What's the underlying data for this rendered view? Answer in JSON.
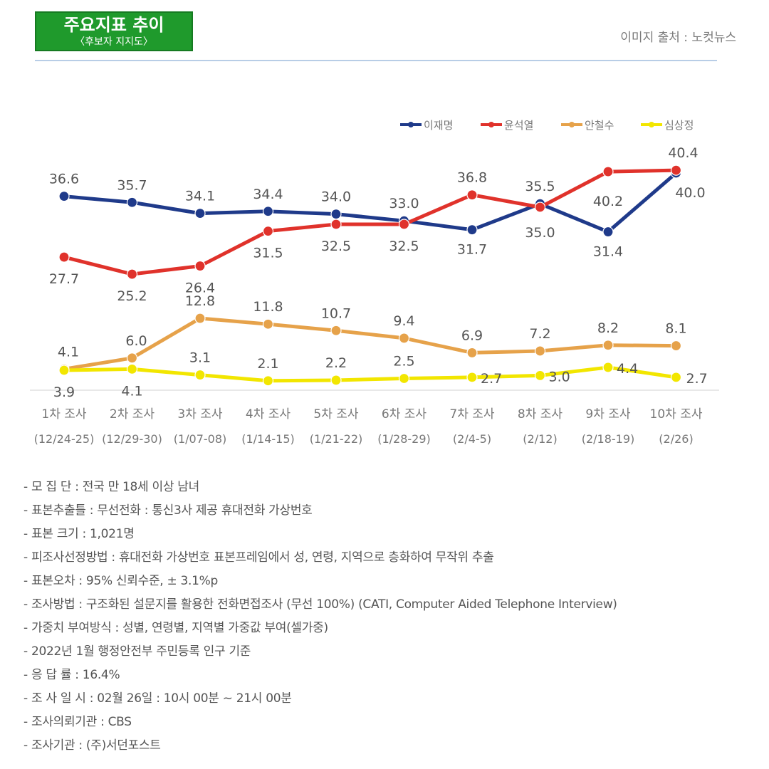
{
  "header": {
    "title": "주요지표 추이",
    "subtitle": "〈후보자 지지도〉",
    "source": "이미지 출처 : 노컷뉴스"
  },
  "chart_data": {
    "type": "line",
    "categories": [
      "1차 조사",
      "2차 조사",
      "3차 조사",
      "4차 조사",
      "5차 조사",
      "6차 조사",
      "7차 조사",
      "8차 조사",
      "9차 조사",
      "10차 조사"
    ],
    "dates": [
      "(12/24-25)",
      "(12/29-30)",
      "(1/07-08)",
      "(1/14-15)",
      "(1/21-22)",
      "(1/28-29)",
      "(2/4-5)",
      "(2/12)",
      "(2/18-19)",
      "(2/26)"
    ],
    "series": [
      {
        "name": "이재명",
        "color": "#1f3a8a",
        "values": [
          36.6,
          35.7,
          34.1,
          34.4,
          34.0,
          33.0,
          31.7,
          35.5,
          31.4,
          40.0
        ]
      },
      {
        "name": "윤석열",
        "color": "#e0322b",
        "values": [
          27.7,
          25.2,
          26.4,
          31.5,
          32.5,
          32.5,
          36.8,
          35.0,
          40.2,
          40.4
        ]
      },
      {
        "name": "안철수",
        "color": "#e6a24a",
        "values": [
          4.1,
          6.0,
          12.8,
          11.8,
          10.7,
          9.4,
          6.9,
          7.2,
          8.2,
          8.1
        ]
      },
      {
        "name": "심상정",
        "color": "#f2e600",
        "values": [
          3.9,
          4.1,
          3.1,
          2.1,
          2.2,
          2.5,
          2.7,
          3.0,
          4.4,
          2.7
        ]
      }
    ],
    "legend_position": "top-right",
    "grid": false
  },
  "notes": [
    "- 모 집 단 : 전국 만 18세 이상 남녀",
    "- 표본추출틀 : 무선전화 : 통신3사 제공 휴대전화 가상번호",
    "- 표본 크기 : 1,021명",
    "- 피조사선정방법 : 휴대전화 가상번호 표본프레임에서 성, 연령, 지역으로 층화하여 무작위 추출",
    "- 표본오차 : 95% 신뢰수준, ± 3.1%p",
    "- 조사방법 : 구조화된 설문지를 활용한 전화면접조사 (무선 100%) (CATI, Computer Aided Telephone Interview)",
    "- 가중치 부여방식 : 성별, 연령별, 지역별 가중값 부여(셀가중)",
    "- 2022년 1월 행정안전부 주민등록 인구 기준",
    "- 응 답 률 : 16.4%",
    "- 조 사 일 시 : 02월 26일 : 10시 00분 ~ 21시 00분",
    "- 조사의뢰기관 : CBS",
    "- 조사기관 : (주)서던포스트"
  ]
}
